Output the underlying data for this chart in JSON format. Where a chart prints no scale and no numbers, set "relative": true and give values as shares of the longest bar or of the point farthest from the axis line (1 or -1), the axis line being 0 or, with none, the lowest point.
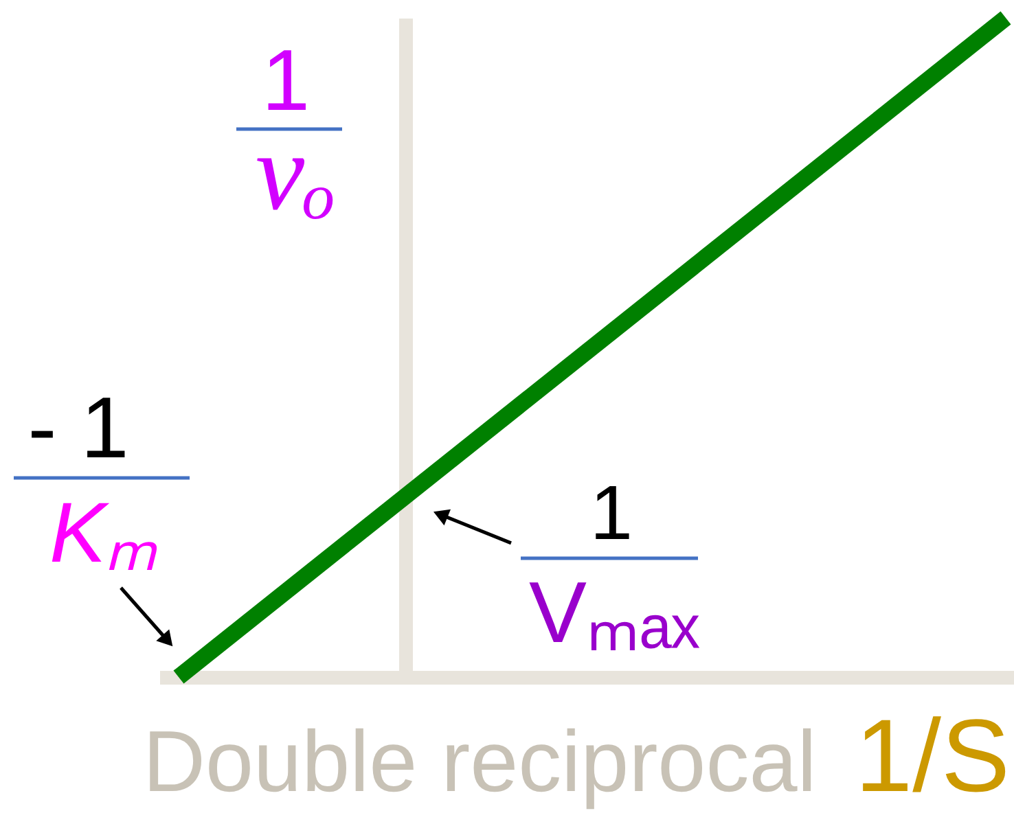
{
  "chart_data": {
    "type": "line",
    "relative": true,
    "title": "Double reciprocal",
    "xlabel": "1/S",
    "ylabel": "1\nvₒ",
    "categories": [
      null,
      null
    ],
    "values": [
      0,
      1
    ],
    "color": "#008000",
    "line_style": "solid",
    "marker": "none",
    "annotations": [
      "- 1\nKₘ",
      "1\nVₘₐₓ"
    ]
  }
}
